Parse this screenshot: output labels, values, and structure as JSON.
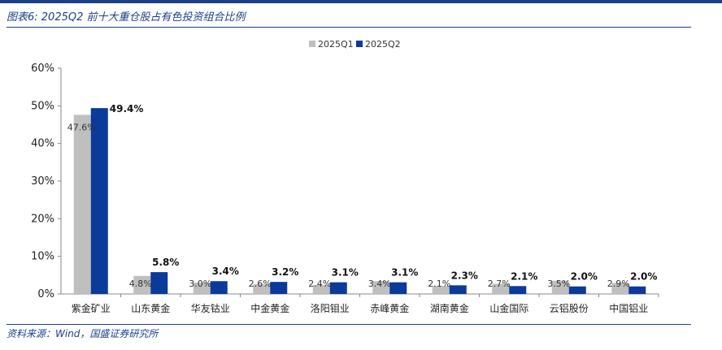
{
  "header": {
    "title": "图表6:  2025Q2 前十大重仓股占有色投资组合比例"
  },
  "footer": {
    "source": "资料来源：Wind，国盛证券研究所"
  },
  "chart_data": {
    "type": "bar",
    "title": "",
    "xlabel": "",
    "ylabel": "",
    "ylim": [
      0,
      60
    ],
    "yticks": [
      "0%",
      "10%",
      "20%",
      "30%",
      "40%",
      "50%",
      "60%"
    ],
    "grid": false,
    "legend_position": "top-center",
    "categories": [
      "紫金矿业",
      "山东黄金",
      "华友钴业",
      "中金黄金",
      "洛阳钼业",
      "赤峰黄金",
      "湖南黄金",
      "山金国际",
      "云铝股份",
      "中国铝业"
    ],
    "series": [
      {
        "name": "2025Q1",
        "color": "#bfbfbf",
        "values": [
          47.6,
          4.8,
          3.0,
          2.6,
          2.4,
          3.4,
          2.1,
          2.7,
          3.5,
          2.9
        ],
        "labels": [
          "47.6%",
          "4.8%",
          "3.0%",
          "2.6%",
          "2.4%",
          "3.4%",
          "2.1%",
          "2.7%",
          "3.5%",
          "2.9%"
        ]
      },
      {
        "name": "2025Q2",
        "color": "#0a3a9a",
        "values": [
          49.4,
          5.8,
          3.4,
          3.2,
          3.1,
          3.1,
          2.3,
          2.1,
          2.0,
          2.0
        ],
        "labels": [
          "49.4%",
          "5.8%",
          "3.4%",
          "3.2%",
          "3.1%",
          "3.1%",
          "2.3%",
          "2.1%",
          "2.0%",
          "2.0%"
        ]
      }
    ]
  }
}
